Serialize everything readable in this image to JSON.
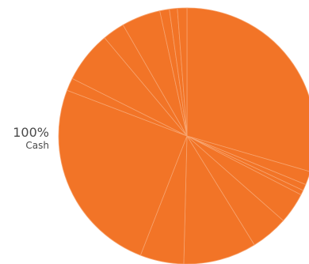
{
  "chart_data": {
    "type": "pie",
    "title": "",
    "color": "#f27427",
    "separator_color": "#f7a36e",
    "categories": [
      "Cash"
    ],
    "values": [
      100
    ],
    "slice_boundaries_pct": [
      0,
      29.5,
      31.2,
      32.0,
      32.6,
      36.5,
      41.2,
      50.4,
      55.9,
      80.8,
      82.4,
      88.9,
      91.7,
      96.6,
      97.8,
      98.8
    ],
    "labels": [
      {
        "percent": "100%",
        "name": "Cash"
      }
    ]
  }
}
